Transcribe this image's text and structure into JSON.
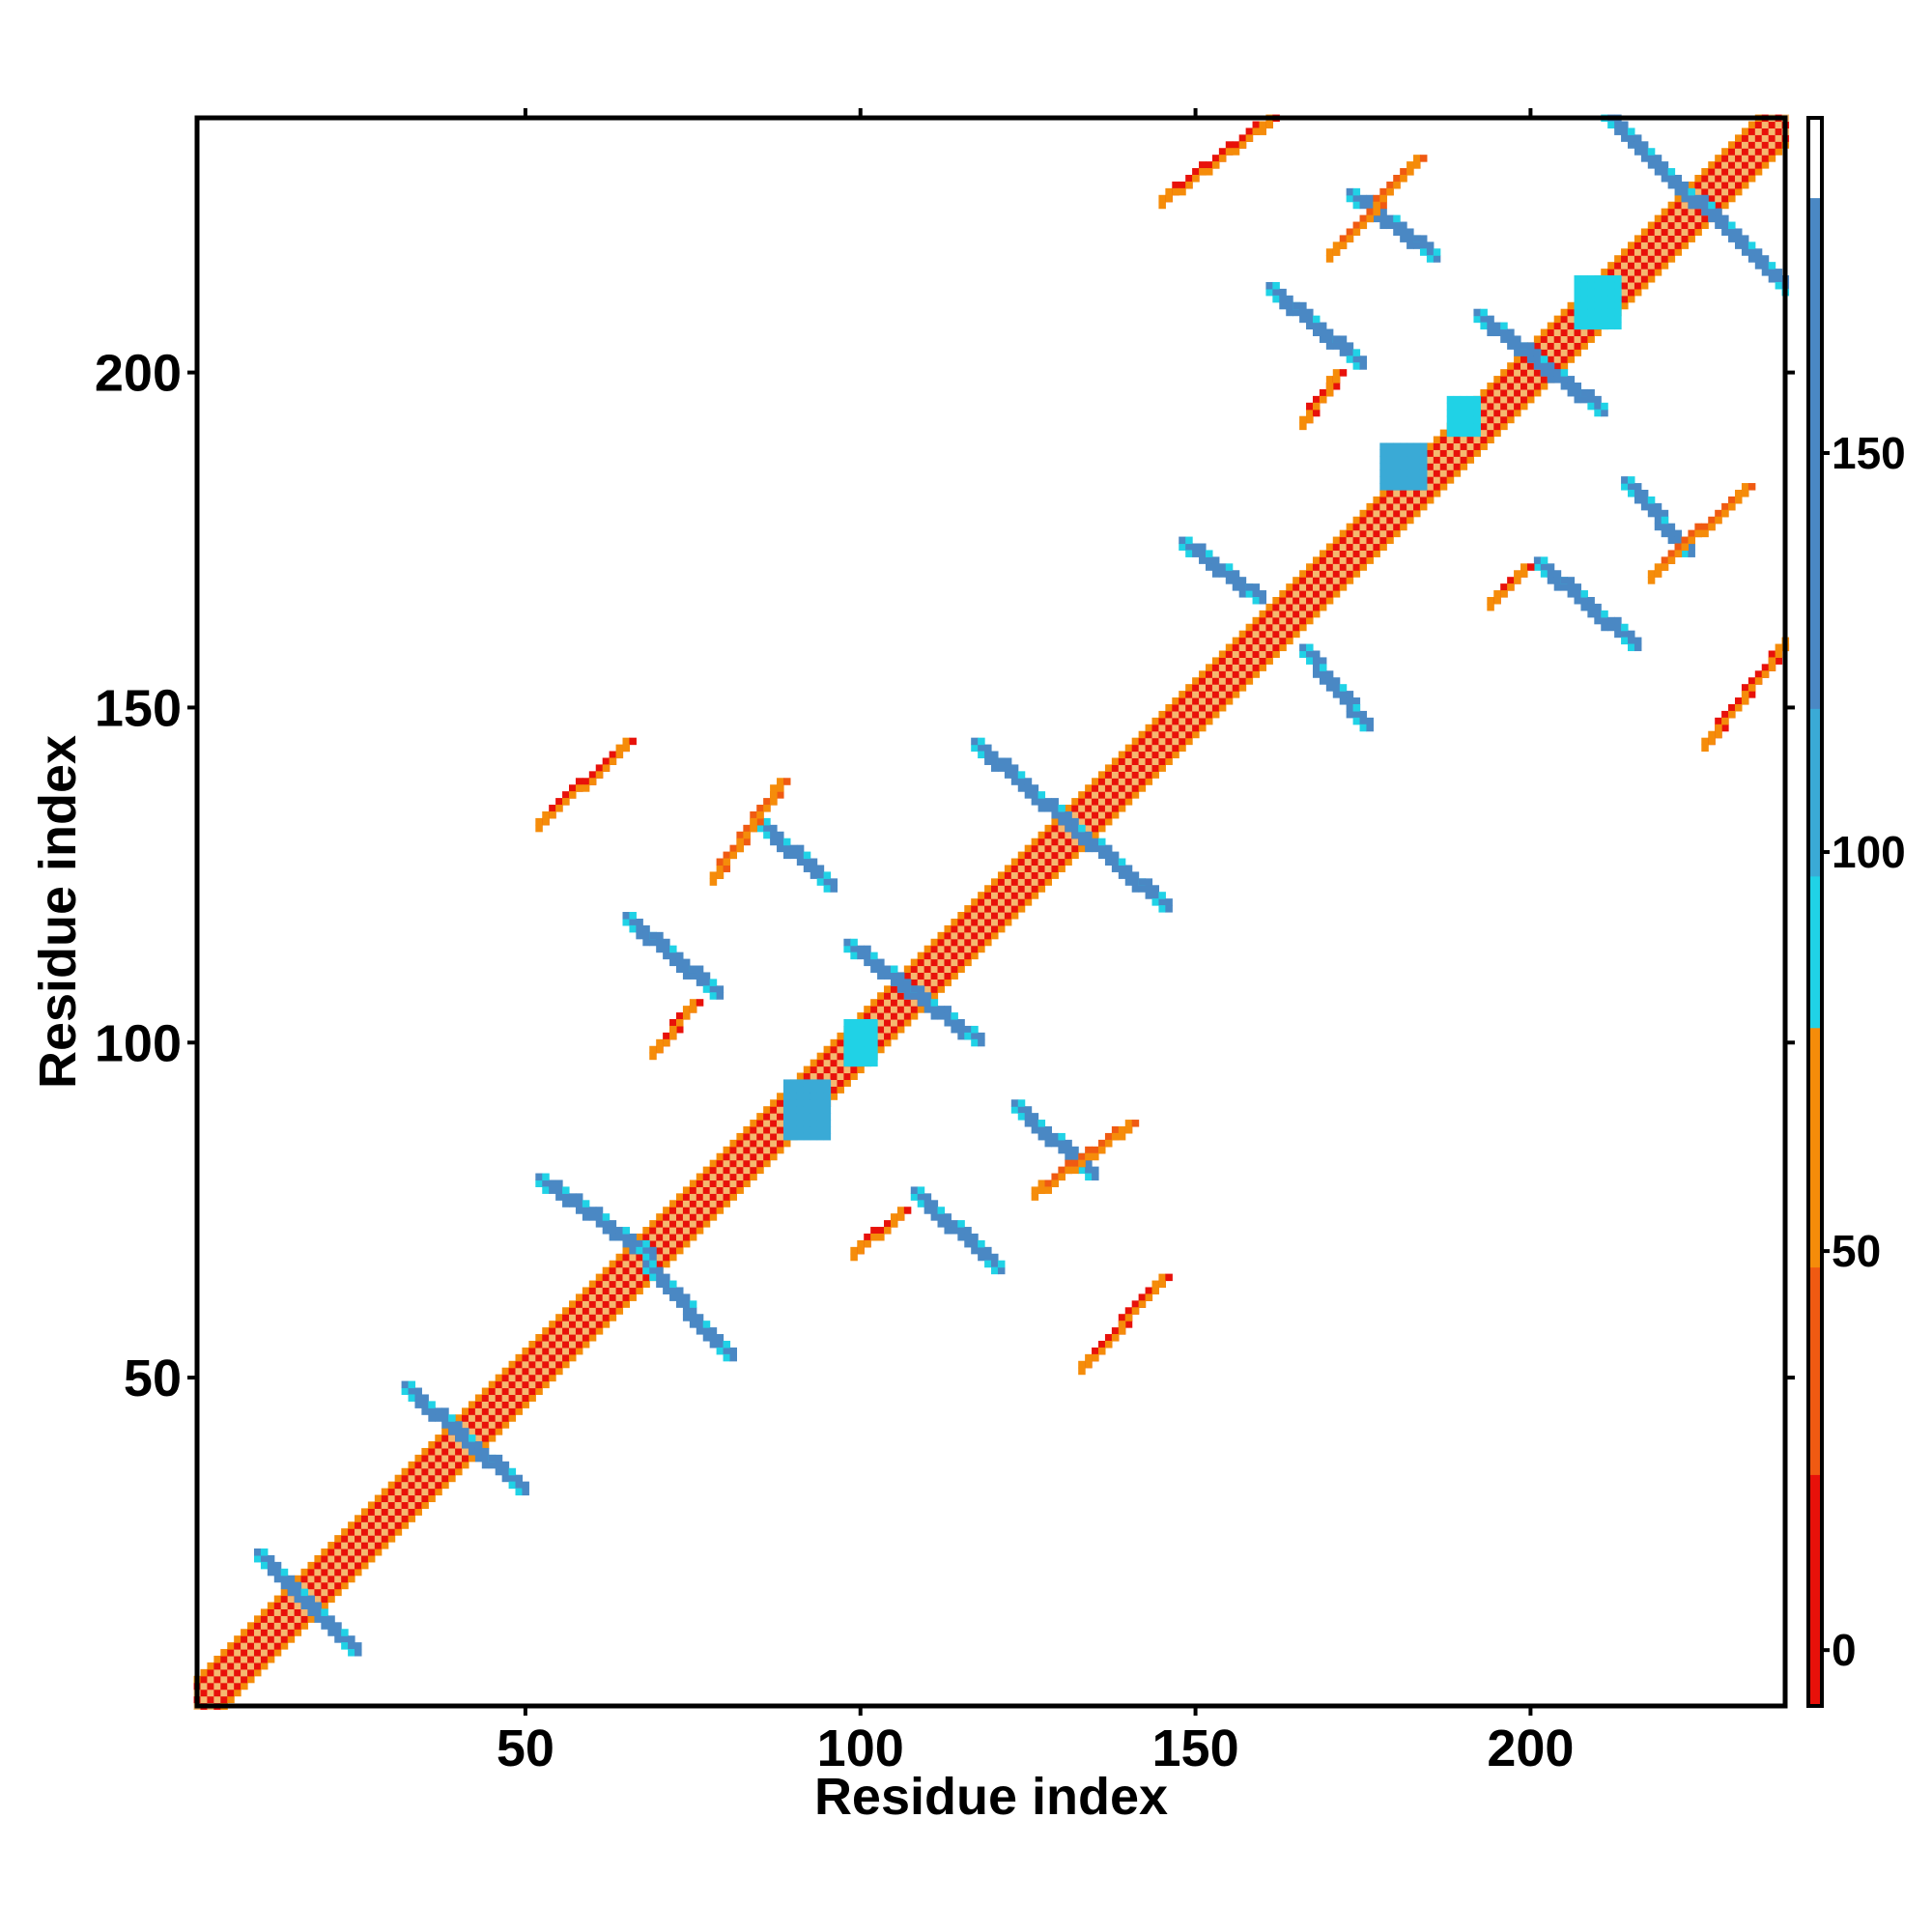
{
  "chart_data": {
    "type": "heatmap",
    "title": "",
    "xlabel": "Residue index",
    "ylabel": "Residue index",
    "xlim": [
      1,
      238
    ],
    "ylim": [
      1,
      238
    ],
    "x_ticks": [
      "50",
      "100",
      "150",
      "200"
    ],
    "y_ticks": [
      "50",
      "100",
      "150",
      "200"
    ],
    "grid": false,
    "colorbar": {
      "ticks": [
        "0",
        "50",
        "100",
        "150"
      ],
      "range": [
        -7,
        192
      ],
      "bands": [
        {
          "from": -7,
          "to": 22,
          "color": "#e8110a"
        },
        {
          "from": 22,
          "to": 48,
          "color": "#f05a12"
        },
        {
          "from": 48,
          "to": 78,
          "color": "#f58c0a"
        },
        {
          "from": 78,
          "to": 97,
          "color": "#20d2e6"
        },
        {
          "from": 97,
          "to": 118,
          "color": "#3aaad6"
        },
        {
          "from": 118,
          "to": 182,
          "color": "#4a88c4"
        },
        {
          "from": 182,
          "to": 192,
          "color": "#ffffff"
        }
      ]
    },
    "colors": {
      "diagonal_alpha": "#e8110a",
      "diagonal_light": "#f5b870",
      "parallel_beta": "#f05a12",
      "antiparallel_beta": "#4a88c4",
      "helix_contact": "#20d2e6",
      "coil_contact": "#f58c0a"
    },
    "contact_segments": [
      {
        "kind": "diagonal",
        "x": [
          1,
          238
        ],
        "y": [
          1,
          238
        ],
        "value": 5
      },
      {
        "kind": "antiparallel",
        "x": [
          10,
          24
        ],
        "y": [
          23,
          9
        ],
        "value": 140
      },
      {
        "kind": "antiparallel",
        "x": [
          32,
          49
        ],
        "y": [
          48,
          33
        ],
        "value": 140
      },
      {
        "kind": "antiparallel",
        "x": [
          52,
          68
        ],
        "y": [
          79,
          68
        ],
        "value": 135
      },
      {
        "kind": "antiparallel",
        "x": [
          68,
          80
        ],
        "y": [
          66,
          53
        ],
        "value": 130
      },
      {
        "kind": "antiparallel",
        "x": [
          65,
          78
        ],
        "y": [
          118,
          107
        ],
        "value": 130
      },
      {
        "kind": "antiparallel",
        "x": [
          85,
          95
        ],
        "y": [
          132,
          123
        ],
        "value": 130
      },
      {
        "kind": "antiparallel",
        "x": [
          98,
          117
        ],
        "y": [
          114,
          100
        ],
        "value": 140
      },
      {
        "kind": "antiparallel",
        "x": [
          108,
          120
        ],
        "y": [
          77,
          66
        ],
        "value": 135
      },
      {
        "kind": "antiparallel",
        "x": [
          123,
          134
        ],
        "y": [
          90,
          80
        ],
        "value": 130
      },
      {
        "kind": "antiparallel",
        "x": [
          117,
          145
        ],
        "y": [
          144,
          120
        ],
        "value": 140
      },
      {
        "kind": "antiparallel",
        "x": [
          148,
          159
        ],
        "y": [
          174,
          166
        ],
        "value": 130
      },
      {
        "kind": "antiparallel",
        "x": [
          166,
          175
        ],
        "y": [
          158,
          147
        ],
        "value": 130
      },
      {
        "kind": "antiparallel",
        "x": [
          161,
          174
        ],
        "y": [
          212,
          201
        ],
        "value": 135
      },
      {
        "kind": "antiparallel",
        "x": [
          173,
          185
        ],
        "y": [
          226,
          217
        ],
        "value": 130
      },
      {
        "kind": "antiparallel",
        "x": [
          192,
          210
        ],
        "y": [
          208,
          194
        ],
        "value": 135
      },
      {
        "kind": "antiparallel",
        "x": [
          201,
          215
        ],
        "y": [
          171,
          159
        ],
        "value": 130
      },
      {
        "kind": "antiparallel",
        "x": [
          214,
          223
        ],
        "y": [
          183,
          173
        ],
        "value": 130
      },
      {
        "kind": "antiparallel",
        "x": [
          211,
          238
        ],
        "y": [
          238,
          212
        ],
        "value": 140
      },
      {
        "kind": "parallel",
        "x": [
          52,
          65
        ],
        "y": [
          133,
          145
        ],
        "value": 5
      },
      {
        "kind": "parallel",
        "x": [
          133,
          145
        ],
        "y": [
          52,
          65
        ],
        "value": 5
      },
      {
        "kind": "parallel",
        "x": [
          145,
          161
        ],
        "y": [
          226,
          238
        ],
        "value": 5
      },
      {
        "kind": "parallel",
        "x": [
          226,
          238
        ],
        "y": [
          145,
          160
        ],
        "value": 5
      },
      {
        "kind": "parallel",
        "x": [
          69,
          75
        ],
        "y": [
          99,
          106
        ],
        "value": 20
      },
      {
        "kind": "parallel",
        "x": [
          99,
          106
        ],
        "y": [
          69,
          75
        ],
        "value": 20
      },
      {
        "kind": "parallel",
        "x": [
          78,
          88
        ],
        "y": [
          125,
          139
        ],
        "value": 40
      },
      {
        "kind": "parallel",
        "x": [
          126,
          140
        ],
        "y": [
          78,
          88
        ],
        "value": 40
      },
      {
        "kind": "parallel",
        "x": [
          166,
          171
        ],
        "y": [
          193,
          200
        ],
        "value": 20
      },
      {
        "kind": "parallel",
        "x": [
          194,
          199
        ],
        "y": [
          166,
          171
        ],
        "value": 20
      },
      {
        "kind": "parallel",
        "x": [
          170,
          183
        ],
        "y": [
          218,
          232
        ],
        "value": 40
      },
      {
        "kind": "parallel",
        "x": [
          218,
          232
        ],
        "y": [
          170,
          183
        ],
        "value": 40
      }
    ],
    "helix_blocks": [
      {
        "x": [
          89,
          95
        ],
        "y": [
          86,
          94
        ],
        "value": 100
      },
      {
        "x": [
          98,
          102
        ],
        "y": [
          97,
          103
        ],
        "value": 95
      },
      {
        "x": [
          178,
          184
        ],
        "y": [
          183,
          189
        ],
        "value": 100
      },
      {
        "x": [
          188,
          192
        ],
        "y": [
          191,
          196
        ],
        "value": 95
      },
      {
        "x": [
          207,
          213
        ],
        "y": [
          207,
          214
        ],
        "value": 90
      }
    ]
  }
}
